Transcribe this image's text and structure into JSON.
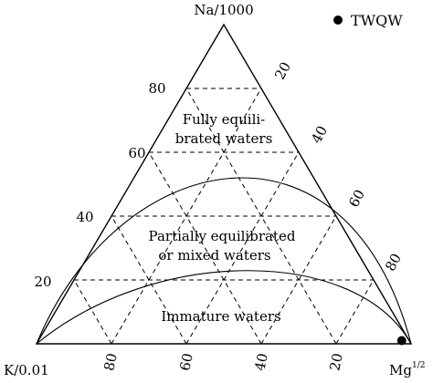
{
  "chart_data": {
    "type": "scatter",
    "diagram": "Na-K-Mg ternary",
    "vertices": {
      "top": "Na/1000",
      "left": "K/0.01",
      "right_base": "Mg",
      "right_sup": "1/2"
    },
    "left_ticks": [
      "20",
      "40",
      "60",
      "80"
    ],
    "right_ticks": [
      "20",
      "40",
      "60",
      "80"
    ],
    "bottom_ticks": [
      "80",
      "60",
      "40",
      "20"
    ],
    "regions": {
      "full_line1": "Fully equili-",
      "full_line2": "brated waters",
      "partial_line1": "Partially equilibrated",
      "partial_line2": "or mixed waters",
      "immature": "Immature waters"
    },
    "legend": {
      "label": "TWQW",
      "color": "#000000"
    },
    "points": [
      {
        "series": "TWQW",
        "na": 0.01,
        "k": 0.02,
        "mg": 0.97
      }
    ]
  }
}
